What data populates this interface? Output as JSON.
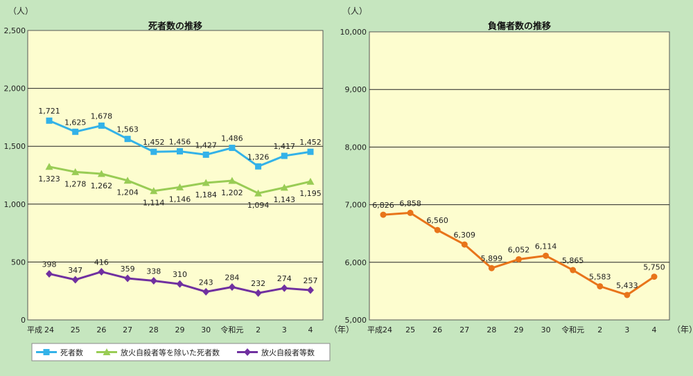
{
  "chart_data": [
    {
      "type": "line",
      "title": "死者数の推移",
      "unit": "（人）",
      "x_unit": "（年）",
      "era_prefix": "平成",
      "categories": [
        "24",
        "25",
        "26",
        "27",
        "28",
        "29",
        "30",
        "令和元",
        "2",
        "3",
        "4"
      ],
      "ylim": [
        0,
        2500
      ],
      "yticks": [
        0,
        500,
        1000,
        1500,
        2000,
        2500
      ],
      "ytick_labels": [
        "0",
        "500",
        "1,000",
        "1,500",
        "2,000",
        "2,500"
      ],
      "grid": true,
      "series": [
        {
          "name": "死者数",
          "color": "#33b2e8",
          "marker": "square",
          "label_position": "above",
          "values": [
            1721,
            1625,
            1678,
            1563,
            1452,
            1456,
            1427,
            1486,
            1326,
            1417,
            1452
          ],
          "labels": [
            "1,721",
            "1,625",
            "1,678",
            "1,563",
            "1,452",
            "1,456",
            "1,427",
            "1,486",
            "1,326",
            "1,417",
            "1,452"
          ]
        },
        {
          "name": "放火自殺者等を除いた死者数",
          "color": "#99cc55",
          "marker": "triangle",
          "label_position": "below",
          "values": [
            1323,
            1278,
            1262,
            1204,
            1114,
            1146,
            1184,
            1202,
            1094,
            1143,
            1195
          ],
          "labels": [
            "1,323",
            "1,278",
            "1,262",
            "1,204",
            "1,114",
            "1,146",
            "1,184",
            "1,202",
            "1,094",
            "1,143",
            "1,195"
          ]
        },
        {
          "name": "放火自殺者等数",
          "color": "#7030a0",
          "marker": "diamond",
          "label_position": "above",
          "values": [
            398,
            347,
            416,
            359,
            338,
            310,
            243,
            284,
            232,
            274,
            257
          ],
          "labels": [
            "398",
            "347",
            "416",
            "359",
            "338",
            "310",
            "243",
            "284",
            "232",
            "274",
            "257"
          ]
        }
      ]
    },
    {
      "type": "line",
      "title": "負傷者数の推移",
      "unit": "（人）",
      "x_unit": "（年）",
      "era_prefix": "平成",
      "categories": [
        "24",
        "25",
        "26",
        "27",
        "28",
        "29",
        "30",
        "令和元",
        "2",
        "3",
        "4"
      ],
      "ylim": [
        5000,
        10000
      ],
      "yticks": [
        5000,
        6000,
        7000,
        8000,
        9000,
        10000
      ],
      "ytick_labels": [
        "5,000",
        "6,000",
        "7,000",
        "8,000",
        "9,000",
        "10,000"
      ],
      "grid": true,
      "series": [
        {
          "name": "負傷者数",
          "color": "#e8741a",
          "marker": "circle",
          "label_position": "above",
          "values": [
            6826,
            6858,
            6560,
            6309,
            5899,
            6052,
            6114,
            5865,
            5583,
            5433,
            5750
          ],
          "labels": [
            "6,826",
            "6,858",
            "6,560",
            "6,309",
            "5,899",
            "6,052",
            "6,114",
            "5,865",
            "5,583",
            "5,433",
            "5,750"
          ]
        }
      ]
    }
  ],
  "legend": {
    "items": [
      {
        "label": "死者数",
        "color": "#33b2e8",
        "marker": "square"
      },
      {
        "label": "放火自殺者等を除いた死者数",
        "color": "#99cc55",
        "marker": "triangle"
      },
      {
        "label": "放火自殺者等数",
        "color": "#7030a0",
        "marker": "diamond"
      }
    ]
  },
  "style": {
    "plot_bg": "#fdfdcf",
    "grid_color": "#222222"
  }
}
